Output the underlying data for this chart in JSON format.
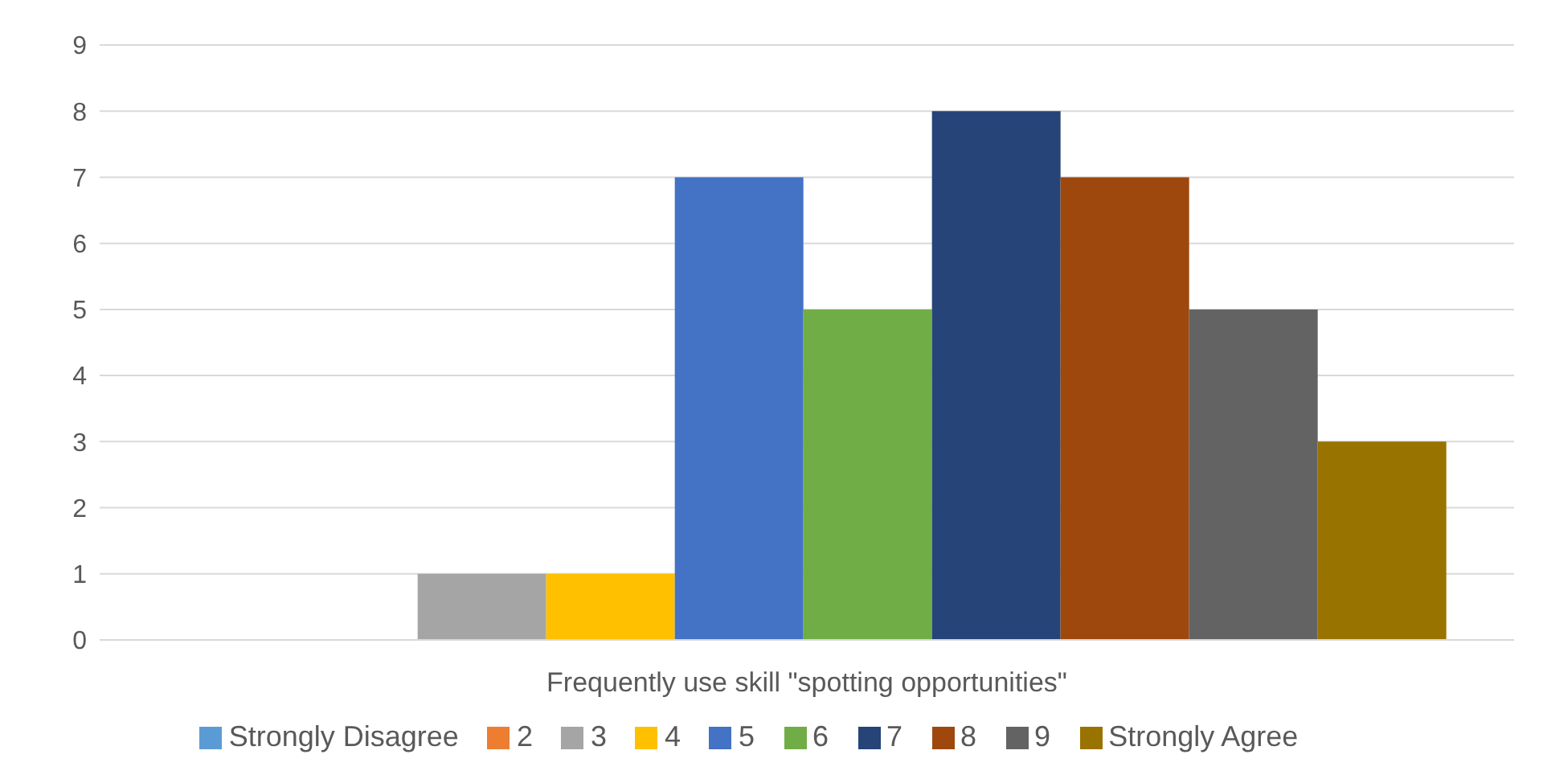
{
  "chart_data": {
    "type": "bar",
    "categories": [
      "Frequently use skill \"spotting opportunities\""
    ],
    "series": [
      {
        "name": "Strongly Disagree",
        "color": "#5b9bd5",
        "values": [
          0
        ]
      },
      {
        "name": "2",
        "color": "#ed7d31",
        "values": [
          0
        ]
      },
      {
        "name": "3",
        "color": "#a5a5a5",
        "values": [
          1
        ]
      },
      {
        "name": "4",
        "color": "#ffc000",
        "values": [
          1
        ]
      },
      {
        "name": "5",
        "color": "#4472c4",
        "values": [
          7
        ]
      },
      {
        "name": "6",
        "color": "#70ad47",
        "values": [
          5
        ]
      },
      {
        "name": "7",
        "color": "#264478",
        "values": [
          8
        ]
      },
      {
        "name": "8",
        "color": "#9e480e",
        "values": [
          7
        ]
      },
      {
        "name": "9",
        "color": "#636363",
        "values": [
          5
        ]
      },
      {
        "name": "Strongly Agree",
        "color": "#997300",
        "values": [
          3
        ]
      }
    ],
    "ylim": [
      0,
      9
    ],
    "yticks": [
      0,
      1,
      2,
      3,
      4,
      5,
      6,
      7,
      8,
      9
    ],
    "grid": "y",
    "legend": "bottom"
  }
}
